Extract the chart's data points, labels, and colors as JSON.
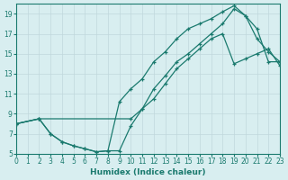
{
  "xlabel": "Humidex (Indice chaleur)",
  "xlim": [
    0,
    23
  ],
  "ylim": [
    5,
    20
  ],
  "xticks": [
    0,
    1,
    2,
    3,
    4,
    5,
    6,
    7,
    8,
    9,
    10,
    11,
    12,
    13,
    14,
    15,
    16,
    17,
    18,
    19,
    20,
    21,
    22,
    23
  ],
  "yticks": [
    5,
    7,
    9,
    11,
    13,
    15,
    17,
    19
  ],
  "bg_color": "#d8eef0",
  "grid_color": "#c0d8dc",
  "line_color": "#1a7a6e",
  "line1_x": [
    0,
    2,
    10,
    11,
    12,
    13,
    14,
    15,
    16,
    17,
    18,
    19,
    20,
    21,
    22,
    23
  ],
  "line1_y": [
    8.0,
    8.5,
    8.5,
    9.5,
    10.5,
    12.0,
    13.5,
    14.5,
    15.5,
    16.5,
    17.0,
    14.0,
    14.5,
    15.0,
    15.5,
    13.8
  ],
  "line2_x": [
    0,
    2,
    3,
    4,
    5,
    6,
    7,
    8,
    9,
    10,
    11,
    12,
    13,
    14,
    15,
    16,
    17,
    18,
    19,
    20,
    21,
    22,
    23
  ],
  "line2_y": [
    8.0,
    8.5,
    7.0,
    6.2,
    5.8,
    5.5,
    5.2,
    5.3,
    10.2,
    11.5,
    12.5,
    14.2,
    15.2,
    16.5,
    17.5,
    18.0,
    18.5,
    19.2,
    19.8,
    18.8,
    17.5,
    14.2,
    14.2
  ],
  "line3_x": [
    0,
    2,
    3,
    4,
    5,
    6,
    7,
    8,
    9,
    10,
    11,
    12,
    13,
    14,
    15,
    16,
    17,
    18,
    19,
    20,
    21,
    22,
    23
  ],
  "line3_y": [
    8.0,
    8.5,
    7.0,
    6.2,
    5.8,
    5.5,
    5.2,
    5.3,
    5.3,
    7.8,
    9.5,
    11.5,
    12.8,
    14.2,
    15.0,
    16.0,
    17.0,
    18.0,
    19.5,
    18.8,
    16.5,
    15.2,
    14.2
  ]
}
